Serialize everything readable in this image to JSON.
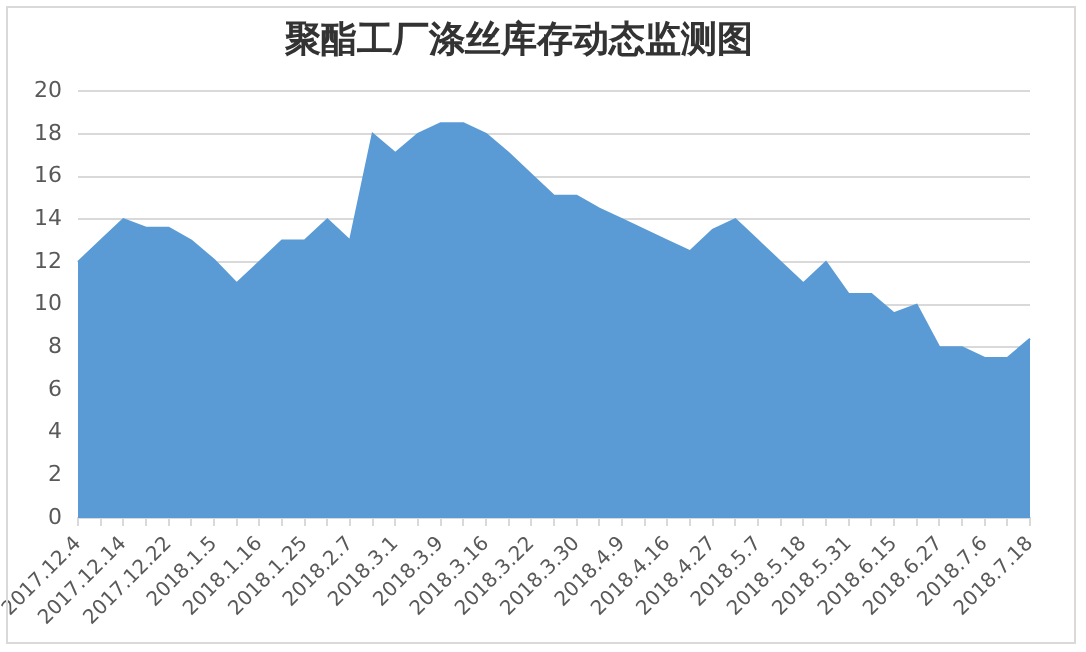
{
  "chart_data": {
    "type": "area",
    "title": "聚酯工厂涤丝库存动态监测图",
    "categories": [
      "2017.12.4",
      null,
      "2017.12.14",
      null,
      "2017.12.22",
      null,
      "2018.1.5",
      null,
      "2018.1.16",
      null,
      "2018.1.25",
      null,
      "2018.2.7",
      null,
      "2018.3.1",
      null,
      "2018.3.9",
      null,
      "2018.3.16",
      null,
      "2018.3.22",
      null,
      "2018.3.30",
      null,
      "2018.4.9",
      null,
      "2018.4.16",
      null,
      "2018.4.27",
      null,
      "2018.5.7",
      null,
      "2018.5.18",
      null,
      "2018.5.31",
      null,
      "2018.6.15",
      null,
      "2018.6.27",
      null,
      "2018.7.6",
      null,
      "2018.7.18"
    ],
    "values": [
      12,
      13,
      14,
      13.6,
      13.6,
      13,
      12.1,
      11,
      12,
      13,
      13,
      14,
      13,
      18,
      17.1,
      18,
      18.5,
      18.5,
      18,
      17.1,
      16.1,
      15.1,
      15.1,
      14.5,
      14,
      13.5,
      13,
      12.5,
      13.5,
      14,
      13,
      12,
      11,
      12,
      10.5,
      10.5,
      9.6,
      10,
      8,
      8,
      7.5,
      7.5,
      8.4
    ],
    "color": "#5b9bd5",
    "ylim": [
      0,
      20
    ],
    "yticks": [
      0,
      2,
      4,
      6,
      8,
      10,
      12,
      14,
      16,
      18,
      20
    ],
    "grid": "y",
    "legend": false
  }
}
